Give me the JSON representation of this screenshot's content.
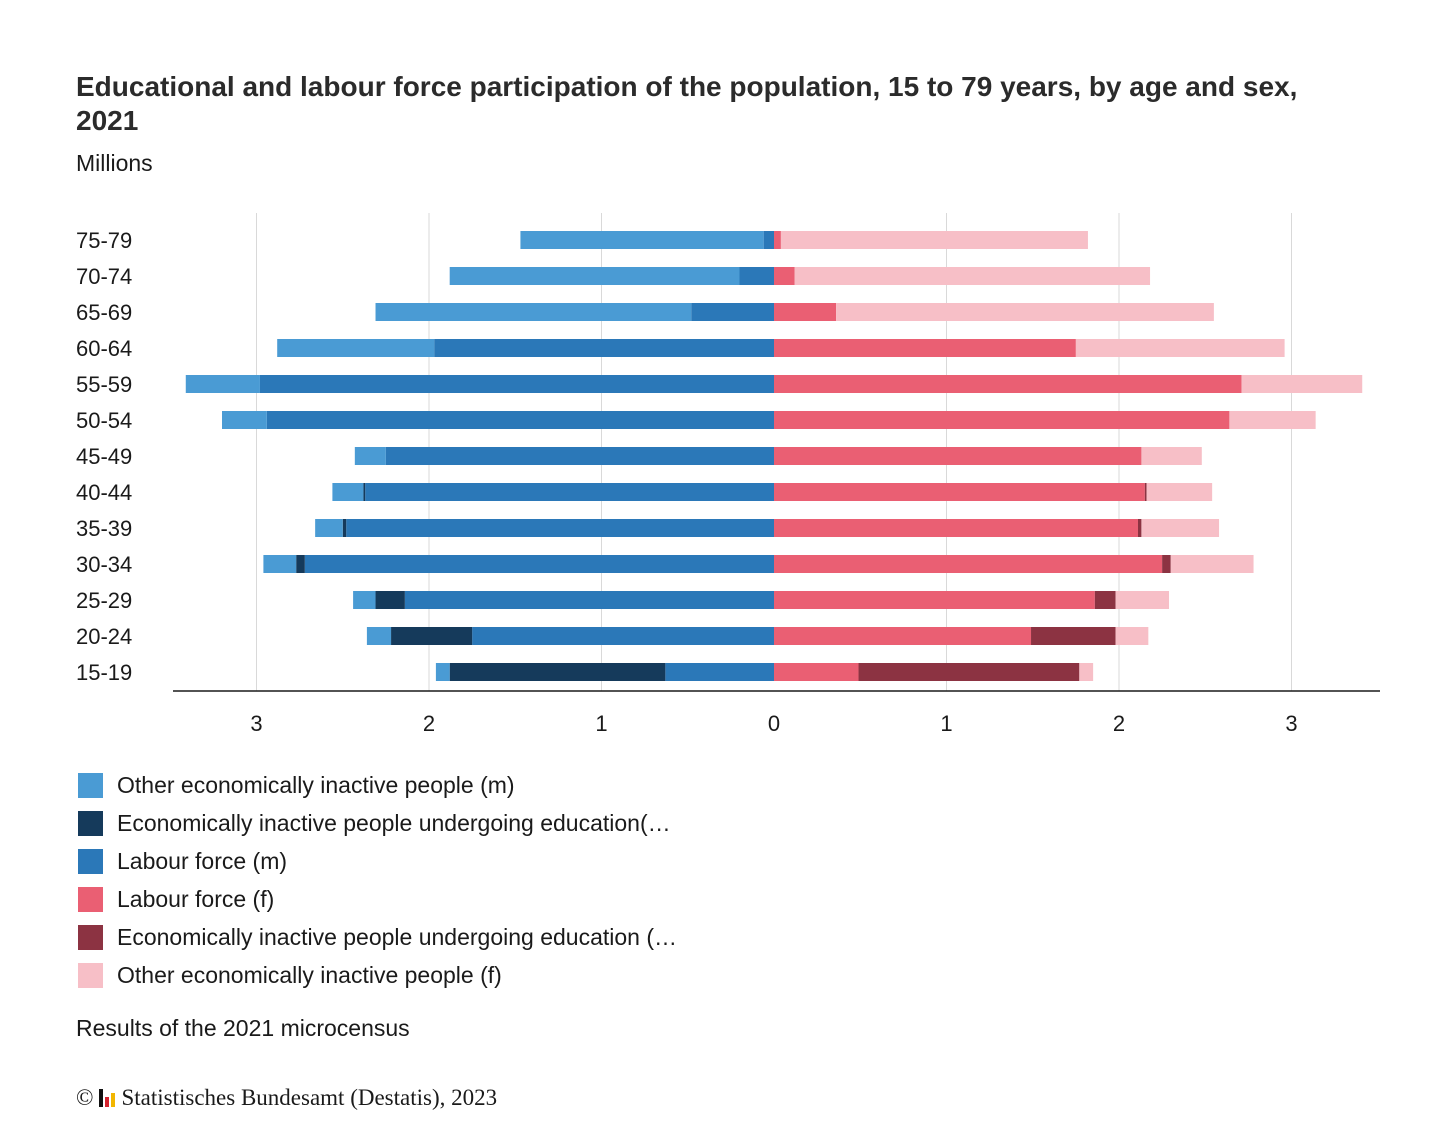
{
  "title": "Educational and labour force participation of the population, 15 to 79 years, by age and sex, 2021",
  "subtitle": "Millions",
  "note": "Results of the 2021 microcensus",
  "footer": {
    "copyright": "©",
    "text": "Statistisches Bundesamt (Destatis), 2023"
  },
  "legend": [
    {
      "label": "Other economically inactive people (m)",
      "color": "#4a9bd4"
    },
    {
      "label": "Economically inactive people undergoing education(…",
      "color": "#153a5b"
    },
    {
      "label": "Labour force (m)",
      "color": "#2b78b8"
    },
    {
      "label": "Labour force (f)",
      "color": "#ea5f73"
    },
    {
      "label": "Economically inactive people undergoing education (…",
      "color": "#8c3342"
    },
    {
      "label": "Other economically inactive people (f)",
      "color": "#f7bfc7"
    }
  ],
  "chart_data": {
    "type": "bar",
    "orientation": "horizontal",
    "stacking": "diverging",
    "categories": [
      "75-79",
      "70-74",
      "65-69",
      "60-64",
      "55-59",
      "50-54",
      "45-49",
      "40-44",
      "35-39",
      "30-34",
      "25-29",
      "20-24",
      "15-19"
    ],
    "xticks": [
      -3,
      -2,
      -1,
      0,
      1,
      2,
      3
    ],
    "xtick_labels": [
      "3",
      "2",
      "1",
      "0",
      "1",
      "2",
      "3"
    ],
    "xlim": [
      -3.48,
      3.5
    ],
    "grid": true,
    "series_male_from_center": [
      {
        "name": "Labour force (m)",
        "color": "#2b78b8",
        "values": [
          0.06,
          0.2,
          0.48,
          1.97,
          2.98,
          2.94,
          2.25,
          2.37,
          2.48,
          2.72,
          2.14,
          1.75,
          0.63
        ]
      },
      {
        "name": "Economically inactive people undergoing education(…",
        "color": "#153a5b",
        "values": [
          0,
          0,
          0,
          0,
          0,
          0,
          0,
          0.01,
          0.02,
          0.05,
          0.17,
          0.47,
          1.25
        ]
      },
      {
        "name": "Other economically inactive people (m)",
        "color": "#4a9bd4",
        "values": [
          1.41,
          1.68,
          1.83,
          0.91,
          0.43,
          0.26,
          0.18,
          0.18,
          0.16,
          0.19,
          0.13,
          0.14,
          0.08
        ]
      }
    ],
    "series_female_from_center": [
      {
        "name": "Labour force (f)",
        "color": "#ea5f73",
        "values": [
          0.04,
          0.12,
          0.36,
          1.75,
          2.71,
          2.64,
          2.13,
          2.15,
          2.11,
          2.25,
          1.86,
          1.49,
          0.49
        ]
      },
      {
        "name": "Economically inactive people undergoing education (…",
        "color": "#8c3342",
        "values": [
          0,
          0,
          0,
          0,
          0,
          0,
          0,
          0.01,
          0.02,
          0.05,
          0.12,
          0.49,
          1.28
        ]
      },
      {
        "name": "Other economically inactive people (f)",
        "color": "#f7bfc7",
        "values": [
          1.78,
          2.06,
          2.19,
          1.21,
          0.7,
          0.5,
          0.35,
          0.38,
          0.45,
          0.48,
          0.31,
          0.19,
          0.08
        ]
      }
    ]
  }
}
